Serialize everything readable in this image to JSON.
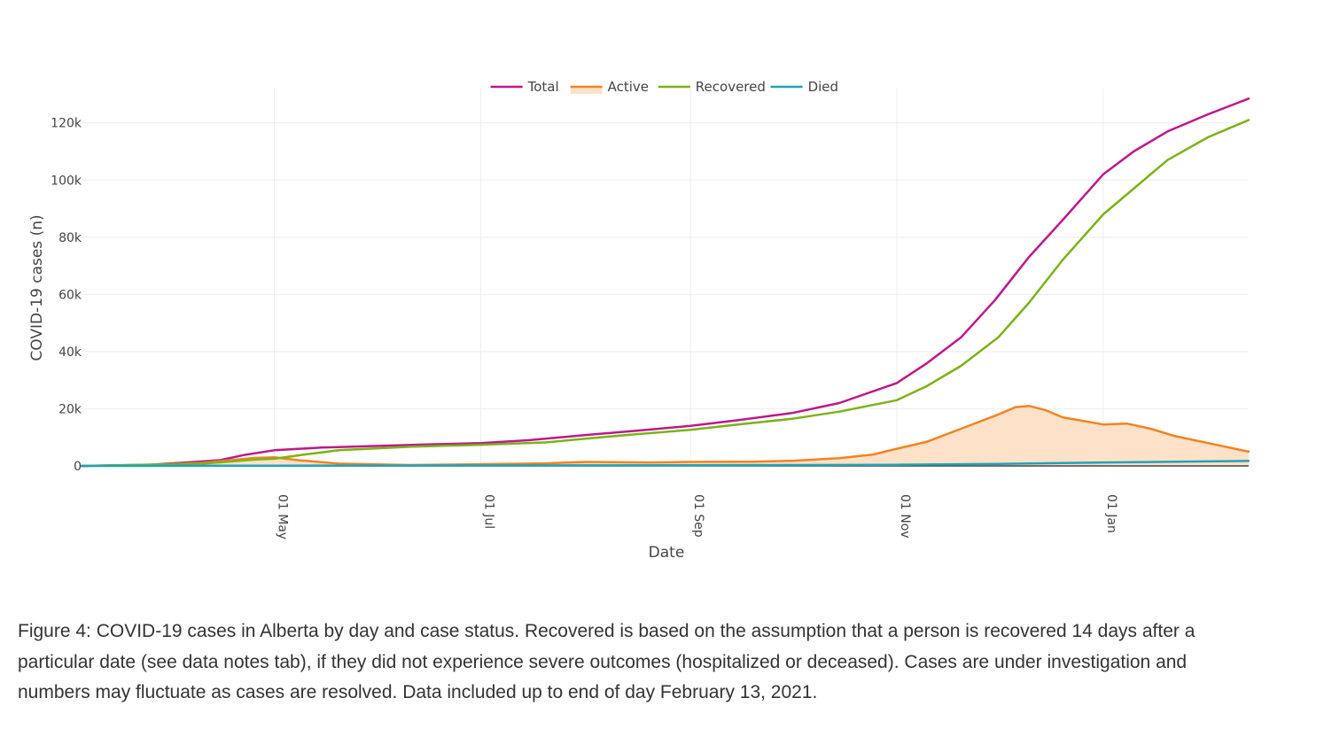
{
  "caption": "Figure 4: COVID-19 cases in Alberta by day and case status. Recovered is based on the assumption that a person is recovered 14 days after a particular date (see data notes tab), if they did not experience severe outcomes (hospitalized or deceased). Cases are under investigation and numbers may fluctuate as cases are resolved. Data included up to end of day February 13, 2021.",
  "chart_data": {
    "type": "line",
    "xlabel": "Date",
    "ylabel": "COVID-19 cases (n)",
    "x_axis": {
      "type": "date",
      "range": [
        "2020-03-05",
        "2021-02-13"
      ],
      "ticks": [
        {
          "date": "2020-05-01",
          "label": "01 May"
        },
        {
          "date": "2020-07-01",
          "label": "01 Jul"
        },
        {
          "date": "2020-09-01",
          "label": "01 Sep"
        },
        {
          "date": "2020-11-01",
          "label": "01 Nov"
        },
        {
          "date": "2021-01-01",
          "label": "01 Jan"
        }
      ]
    },
    "y_axis": {
      "range": [
        0,
        132000
      ],
      "ticks": [
        {
          "value": 0,
          "label": "0"
        },
        {
          "value": 20000,
          "label": "20k"
        },
        {
          "value": 40000,
          "label": "40k"
        },
        {
          "value": 60000,
          "label": "60k"
        },
        {
          "value": 80000,
          "label": "80k"
        },
        {
          "value": 100000,
          "label": "100k"
        },
        {
          "value": 120000,
          "label": "120k"
        }
      ]
    },
    "grid": true,
    "legend_position": "top-center",
    "series": [
      {
        "name": "Total",
        "color": "#c0168c",
        "fill": false,
        "points": [
          [
            "2020-03-05",
            0
          ],
          [
            "2020-03-25",
            400
          ],
          [
            "2020-04-05",
            1200
          ],
          [
            "2020-04-15",
            2000
          ],
          [
            "2020-04-22",
            3800
          ],
          [
            "2020-05-01",
            5500
          ],
          [
            "2020-05-15",
            6400
          ],
          [
            "2020-06-01",
            7000
          ],
          [
            "2020-06-15",
            7500
          ],
          [
            "2020-07-01",
            8000
          ],
          [
            "2020-07-15",
            9000
          ],
          [
            "2020-08-01",
            10800
          ],
          [
            "2020-08-15",
            12200
          ],
          [
            "2020-09-01",
            14000
          ],
          [
            "2020-09-15",
            16000
          ],
          [
            "2020-10-01",
            18500
          ],
          [
            "2020-10-15",
            22000
          ],
          [
            "2020-11-01",
            29000
          ],
          [
            "2020-11-10",
            36000
          ],
          [
            "2020-11-20",
            45000
          ],
          [
            "2020-11-30",
            58000
          ],
          [
            "2020-12-10",
            73000
          ],
          [
            "2020-12-20",
            86000
          ],
          [
            "2021-01-01",
            102000
          ],
          [
            "2021-01-10",
            110000
          ],
          [
            "2021-01-20",
            117000
          ],
          [
            "2021-02-01",
            123000
          ],
          [
            "2021-02-13",
            128500
          ]
        ]
      },
      {
        "name": "Active",
        "color": "#f5821f",
        "fill": true,
        "fill_color": "#fde1c8",
        "points": [
          [
            "2020-03-05",
            0
          ],
          [
            "2020-03-25",
            300
          ],
          [
            "2020-04-10",
            1100
          ],
          [
            "2020-04-25",
            2800
          ],
          [
            "2020-05-01",
            3000
          ],
          [
            "2020-05-08",
            2000
          ],
          [
            "2020-05-20",
            800
          ],
          [
            "2020-06-10",
            300
          ],
          [
            "2020-07-01",
            600
          ],
          [
            "2020-07-20",
            900
          ],
          [
            "2020-08-01",
            1400
          ],
          [
            "2020-08-20",
            1200
          ],
          [
            "2020-09-01",
            1400
          ],
          [
            "2020-09-20",
            1500
          ],
          [
            "2020-10-01",
            1800
          ],
          [
            "2020-10-15",
            2700
          ],
          [
            "2020-10-25",
            4000
          ],
          [
            "2020-11-01",
            6000
          ],
          [
            "2020-11-10",
            8500
          ],
          [
            "2020-11-20",
            13000
          ],
          [
            "2020-12-01",
            18000
          ],
          [
            "2020-12-06",
            20500
          ],
          [
            "2020-12-10",
            21000
          ],
          [
            "2020-12-15",
            19500
          ],
          [
            "2020-12-20",
            17000
          ],
          [
            "2021-01-01",
            14500
          ],
          [
            "2021-01-08",
            14800
          ],
          [
            "2021-01-15",
            13000
          ],
          [
            "2021-01-22",
            10500
          ],
          [
            "2021-02-01",
            8000
          ],
          [
            "2021-02-13",
            5000
          ]
        ]
      },
      {
        "name": "Recovered",
        "color": "#7ab317",
        "fill": false,
        "points": [
          [
            "2020-03-05",
            0
          ],
          [
            "2020-04-10",
            800
          ],
          [
            "2020-04-25",
            2200
          ],
          [
            "2020-05-01",
            2500
          ],
          [
            "2020-05-10",
            4000
          ],
          [
            "2020-05-20",
            5500
          ],
          [
            "2020-06-10",
            6700
          ],
          [
            "2020-07-01",
            7400
          ],
          [
            "2020-07-20",
            8200
          ],
          [
            "2020-08-01",
            9500
          ],
          [
            "2020-08-15",
            11000
          ],
          [
            "2020-09-01",
            12600
          ],
          [
            "2020-09-15",
            14500
          ],
          [
            "2020-10-01",
            16500
          ],
          [
            "2020-10-15",
            19000
          ],
          [
            "2020-11-01",
            23000
          ],
          [
            "2020-11-10",
            28000
          ],
          [
            "2020-11-20",
            35000
          ],
          [
            "2020-12-01",
            45000
          ],
          [
            "2020-12-10",
            57000
          ],
          [
            "2020-12-20",
            72000
          ],
          [
            "2021-01-01",
            88000
          ],
          [
            "2021-01-10",
            97000
          ],
          [
            "2021-01-20",
            107000
          ],
          [
            "2021-02-01",
            115000
          ],
          [
            "2021-02-13",
            121000
          ]
        ]
      },
      {
        "name": "Died",
        "color": "#1fa3b8",
        "fill": false,
        "points": [
          [
            "2020-03-05",
            0
          ],
          [
            "2020-05-01",
            100
          ],
          [
            "2020-09-01",
            250
          ],
          [
            "2020-11-01",
            400
          ],
          [
            "2020-12-01",
            700
          ],
          [
            "2021-01-01",
            1200
          ],
          [
            "2021-02-13",
            1750
          ]
        ]
      }
    ]
  }
}
